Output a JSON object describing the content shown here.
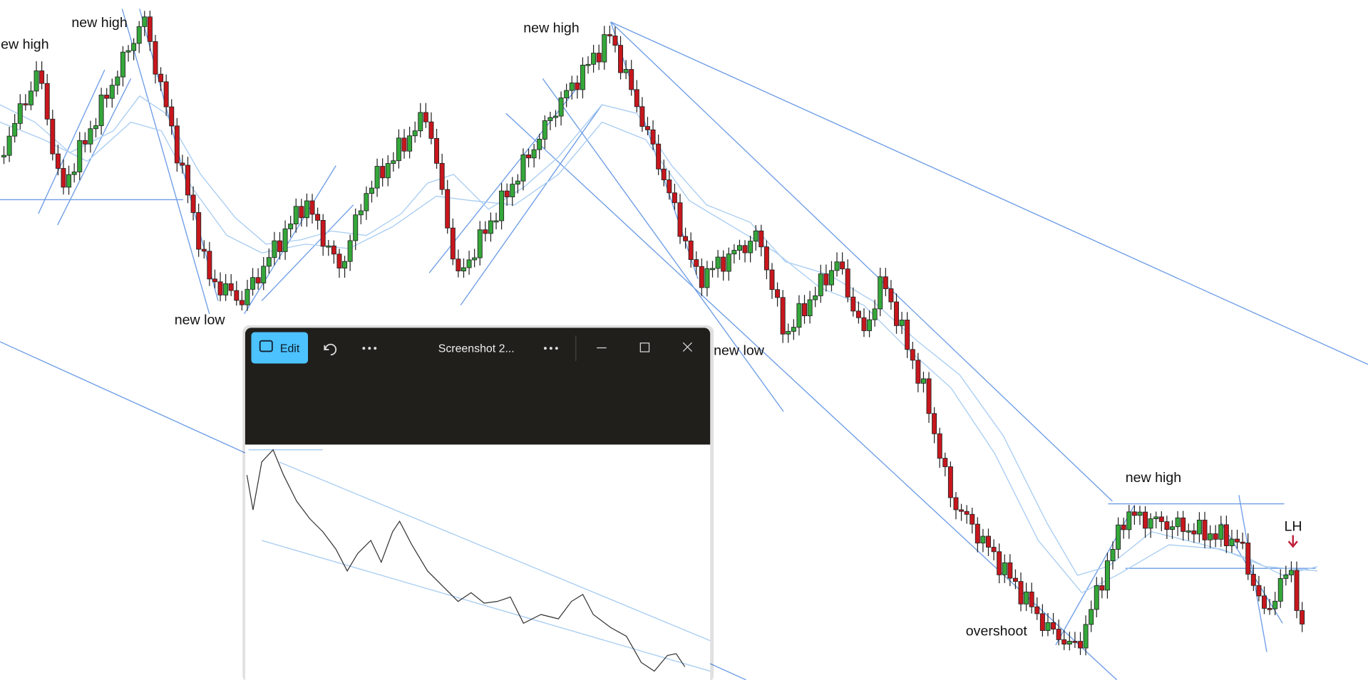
{
  "chart": {
    "annotations": [
      "new high",
      "new high",
      "new high",
      "new low",
      "new low",
      "new high",
      "overshoot",
      "LH"
    ]
  },
  "window": {
    "edit_button": "Edit",
    "title": "Screenshot 2..."
  }
}
